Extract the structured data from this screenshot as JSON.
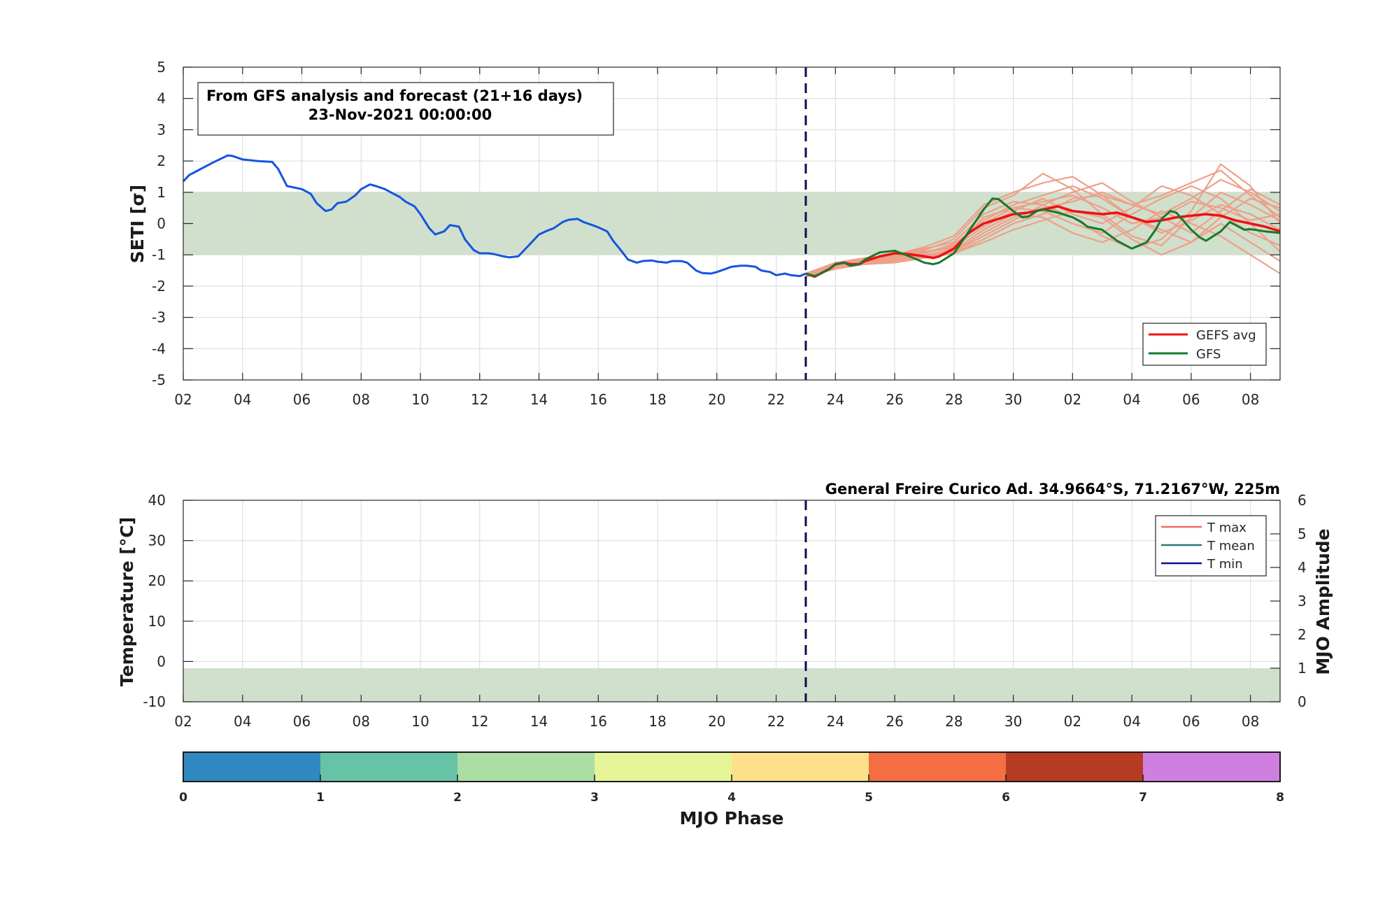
{
  "chart_data": [
    {
      "type": "line",
      "panel": "seti",
      "ylabel": "SETI [σ]",
      "ylim": [
        -5,
        5
      ],
      "yticks": [
        "-5",
        "-4",
        "-3",
        "-2",
        "-1",
        "0",
        "1",
        "2",
        "3",
        "4",
        "5"
      ],
      "x_ticks": [
        "02",
        "04",
        "06",
        "08",
        "10",
        "12",
        "14",
        "16",
        "18",
        "20",
        "22",
        "24",
        "26",
        "28",
        "30",
        "02",
        "04",
        "06",
        "08"
      ],
      "x_range_days": [
        0,
        37
      ],
      "info_line1": "From GFS analysis and forecast (21+16 days)",
      "info_line2": "23-Nov-2021 00:00:00",
      "forecast_start_day": 21,
      "normal_band": [
        -1,
        1
      ],
      "band_color": "#d0e0cc",
      "legend": [
        {
          "label": "GEFS avg",
          "color": "#ee1111"
        },
        {
          "label": "GFS",
          "color": "#167a2c"
        }
      ],
      "analysis": {
        "color": "#1455e0",
        "x": [
          0,
          0.2,
          0.5,
          1.0,
          1.5,
          1.6,
          1.7,
          2.0,
          2.5,
          3.0,
          3.2,
          3.5,
          4.0,
          4.3,
          4.5,
          4.8,
          5.0,
          5.2,
          5.5,
          5.8,
          6.0,
          6.3,
          6.5,
          6.8,
          7.0,
          7.3,
          7.5,
          7.8,
          8.0,
          8.3,
          8.5,
          8.8,
          9.0,
          9.3,
          9.5,
          9.8,
          10.0,
          10.3,
          10.5,
          10.8,
          11.0,
          11.3,
          11.5,
          11.8,
          12.0,
          12.3,
          12.5,
          12.8,
          13.0,
          13.3,
          13.5,
          13.8,
          14.0,
          14.3,
          14.5,
          14.8,
          15.0,
          15.3,
          15.5,
          15.8,
          16.0,
          16.3,
          16.5,
          16.8,
          17.0,
          17.3,
          17.5,
          17.8,
          18.0,
          18.3,
          18.5,
          18.8,
          19.0,
          19.3,
          19.5,
          19.8,
          20.0,
          20.3,
          20.5,
          20.8,
          21.0
        ],
        "y": [
          1.35,
          1.55,
          1.7,
          1.95,
          2.18,
          2.17,
          2.15,
          2.05,
          2.0,
          1.97,
          1.75,
          1.2,
          1.1,
          0.95,
          0.65,
          0.4,
          0.45,
          0.65,
          0.7,
          0.9,
          1.1,
          1.25,
          1.2,
          1.1,
          1.0,
          0.85,
          0.7,
          0.55,
          0.3,
          -0.15,
          -0.35,
          -0.25,
          -0.05,
          -0.1,
          -0.5,
          -0.85,
          -0.95,
          -0.95,
          -0.98,
          -1.05,
          -1.08,
          -1.05,
          -0.85,
          -0.55,
          -0.35,
          -0.22,
          -0.15,
          0.05,
          0.12,
          0.15,
          0.05,
          -0.05,
          -0.12,
          -0.25,
          -0.55,
          -0.9,
          -1.15,
          -1.25,
          -1.2,
          -1.18,
          -1.22,
          -1.25,
          -1.2,
          -1.2,
          -1.25,
          -1.5,
          -1.58,
          -1.6,
          -1.55,
          -1.45,
          -1.38,
          -1.35,
          -1.35,
          -1.38,
          -1.5,
          -1.55,
          -1.65,
          -1.6,
          -1.65,
          -1.68,
          -1.6
        ]
      },
      "gefs_avg": {
        "color": "#ee1111",
        "x": [
          21.0,
          21.3,
          21.5,
          21.8,
          22.0,
          22.3,
          22.5,
          22.8,
          23.0,
          23.5,
          24.0,
          24.5,
          25.0,
          25.3,
          25.5,
          26.0,
          26.5,
          27.0,
          27.5,
          28.0,
          28.5,
          29.0,
          29.5,
          30.0,
          30.5,
          31.0,
          31.5,
          32.0,
          32.5,
          33.0,
          33.5,
          34.0,
          34.5,
          35.0,
          35.5,
          36.0,
          36.5,
          37.0
        ],
        "y": [
          -1.6,
          -1.7,
          -1.6,
          -1.45,
          -1.3,
          -1.25,
          -1.3,
          -1.3,
          -1.2,
          -1.05,
          -0.95,
          -0.98,
          -1.05,
          -1.1,
          -1.05,
          -0.8,
          -0.3,
          0.0,
          0.15,
          0.3,
          0.35,
          0.45,
          0.55,
          0.4,
          0.35,
          0.3,
          0.35,
          0.2,
          0.05,
          0.1,
          0.2,
          0.25,
          0.3,
          0.25,
          0.1,
          0.0,
          -0.1,
          -0.25
        ]
      },
      "gfs": {
        "color": "#167a2c",
        "x": [
          21.0,
          21.3,
          21.5,
          21.8,
          22.0,
          22.3,
          22.5,
          22.8,
          23.0,
          23.5,
          24.0,
          24.5,
          25.0,
          25.3,
          25.5,
          26.0,
          26.5,
          27.0,
          27.3,
          27.5,
          27.8,
          28.0,
          28.3,
          28.5,
          28.8,
          29.0,
          29.5,
          30.0,
          30.3,
          30.5,
          31.0,
          31.5,
          32.0,
          32.5,
          32.8,
          33.0,
          33.3,
          33.5,
          34.0,
          34.3,
          34.5,
          35.0,
          35.3,
          35.5,
          35.8,
          36.0,
          36.5,
          37.0
        ],
        "y": [
          -1.6,
          -1.68,
          -1.6,
          -1.45,
          -1.3,
          -1.25,
          -1.35,
          -1.3,
          -1.15,
          -0.92,
          -0.87,
          -1.05,
          -1.25,
          -1.3,
          -1.25,
          -0.95,
          -0.25,
          0.45,
          0.8,
          0.78,
          0.55,
          0.4,
          0.2,
          0.22,
          0.4,
          0.45,
          0.35,
          0.2,
          0.05,
          -0.1,
          -0.2,
          -0.55,
          -0.8,
          -0.6,
          -0.2,
          0.15,
          0.4,
          0.35,
          -0.2,
          -0.45,
          -0.55,
          -0.25,
          0.05,
          -0.05,
          -0.2,
          -0.18,
          -0.25,
          -0.3
        ]
      },
      "ensemble": {
        "color": "#eda08a",
        "members": [
          {
            "x": [
              21,
              22,
              23,
              24,
              25,
              26,
              27,
              28,
              29,
              30,
              31,
              32,
              33,
              34,
              35,
              36,
              37
            ],
            "y": [
              -1.65,
              -1.35,
              -1.15,
              -1.1,
              -0.95,
              -0.7,
              0.1,
              0.6,
              0.9,
              1.2,
              0.8,
              0.2,
              -0.3,
              0.1,
              0.6,
              0.3,
              -0.2
            ]
          },
          {
            "x": [
              21,
              22,
              23,
              24,
              25,
              26,
              27,
              28,
              29,
              30,
              31,
              32,
              33,
              34,
              35,
              36,
              37
            ],
            "y": [
              -1.7,
              -1.3,
              -1.25,
              -1.05,
              -0.85,
              -0.5,
              0.5,
              0.9,
              1.6,
              1.1,
              0.3,
              -0.4,
              -0.7,
              0.2,
              1.0,
              0.6,
              0.1
            ]
          },
          {
            "x": [
              21,
              22,
              23,
              24,
              25,
              26,
              27,
              28,
              29,
              30,
              31,
              32,
              33,
              34,
              35,
              36,
              37
            ],
            "y": [
              -1.6,
              -1.4,
              -1.2,
              -1.15,
              -1.1,
              -0.9,
              -0.3,
              0.2,
              0.5,
              0.7,
              1.0,
              0.6,
              0.3,
              0.8,
              1.4,
              1.0,
              0.4
            ]
          },
          {
            "x": [
              21,
              22,
              23,
              24,
              25,
              26,
              27,
              28,
              29,
              30,
              31,
              32,
              33,
              34,
              35,
              36,
              37
            ],
            "y": [
              -1.65,
              -1.25,
              -1.2,
              -1.0,
              -0.8,
              -0.6,
              0.3,
              0.7,
              0.6,
              0.2,
              -0.4,
              -0.8,
              -0.5,
              0.4,
              1.9,
              1.2,
              0.0
            ]
          },
          {
            "x": [
              21,
              22,
              23,
              24,
              25,
              26,
              27,
              28,
              29,
              30,
              31,
              32,
              33,
              34,
              35,
              36,
              37
            ],
            "y": [
              -1.7,
              -1.45,
              -1.3,
              -1.2,
              -1.05,
              -0.95,
              -0.5,
              0.0,
              0.3,
              0.8,
              0.9,
              0.2,
              -0.2,
              -0.6,
              0.2,
              0.8,
              0.5
            ]
          },
          {
            "x": [
              21,
              22,
              23,
              24,
              25,
              26,
              27,
              28,
              29,
              30,
              31,
              32,
              33,
              34,
              35,
              36,
              37
            ],
            "y": [
              -1.6,
              -1.3,
              -1.15,
              -1.1,
              -0.9,
              -0.75,
              -0.1,
              0.4,
              0.8,
              0.3,
              0.0,
              0.5,
              1.2,
              0.9,
              0.3,
              -0.3,
              -0.7
            ]
          },
          {
            "x": [
              21,
              22,
              23,
              24,
              25,
              26,
              27,
              28,
              29,
              30,
              31,
              32,
              33,
              34,
              35,
              36,
              37
            ],
            "y": [
              -1.65,
              -1.35,
              -1.3,
              -1.25,
              -1.1,
              -0.95,
              -0.6,
              -0.2,
              0.1,
              0.4,
              0.2,
              -0.5,
              -1.0,
              -0.6,
              0.0,
              -0.6,
              -1.2
            ]
          },
          {
            "x": [
              21,
              22,
              23,
              24,
              25,
              26,
              27,
              28,
              29,
              30,
              31,
              32,
              33,
              34,
              35,
              36,
              37
            ],
            "y": [
              -1.6,
              -1.25,
              -1.1,
              -1.0,
              -0.75,
              -0.4,
              0.6,
              1.0,
              1.3,
              1.5,
              0.9,
              0.6,
              0.9,
              1.3,
              1.7,
              0.9,
              0.2
            ]
          },
          {
            "x": [
              21,
              22,
              23,
              24,
              25,
              26,
              27,
              28,
              29,
              30,
              31,
              32,
              33,
              34,
              35,
              36,
              37
            ],
            "y": [
              -1.7,
              -1.4,
              -1.25,
              -1.15,
              -1.0,
              -0.85,
              -0.2,
              0.3,
              0.2,
              -0.3,
              -0.6,
              -0.2,
              0.4,
              0.0,
              -0.4,
              -1.0,
              -1.6
            ]
          },
          {
            "x": [
              21,
              22,
              23,
              24,
              25,
              26,
              27,
              28,
              29,
              30,
              31,
              32,
              33,
              34,
              35,
              36,
              37
            ],
            "y": [
              -1.65,
              -1.3,
              -1.2,
              -1.1,
              -0.9,
              -0.8,
              0.2,
              0.5,
              0.7,
              0.9,
              0.5,
              0.0,
              0.2,
              0.7,
              0.5,
              0.1,
              0.3
            ]
          },
          {
            "x": [
              21,
              22,
              23,
              24,
              25,
              26,
              27,
              28,
              29,
              30,
              31,
              32,
              33,
              34,
              35,
              36,
              37
            ],
            "y": [
              -1.6,
              -1.35,
              -1.2,
              -1.2,
              -1.05,
              -0.9,
              -0.4,
              0.1,
              0.6,
              1.0,
              1.3,
              0.7,
              0.2,
              -0.3,
              0.4,
              1.1,
              0.6
            ]
          },
          {
            "x": [
              21,
              22,
              23,
              24,
              25,
              26,
              27,
              28,
              29,
              30,
              31,
              32,
              33,
              34,
              35,
              36,
              37
            ],
            "y": [
              -1.7,
              -1.3,
              -1.15,
              -1.05,
              -0.95,
              -0.65,
              0.0,
              0.5,
              0.4,
              0.0,
              -0.3,
              0.3,
              0.8,
              1.2,
              0.8,
              0.0,
              -0.9
            ]
          }
        ]
      }
    },
    {
      "type": "line",
      "panel": "temperature",
      "title": "General Freire Curico Ad. 34.9664°S, 71.2167°W, 225m",
      "ylabel": "Temperature [°C]",
      "ylabel_right": "MJO Amplitude",
      "ylim": [
        -10,
        40
      ],
      "yticks": [
        "-10",
        "0",
        "10",
        "20",
        "30",
        "40"
      ],
      "ylim_right": [
        0,
        6
      ],
      "yticks_right": [
        "0",
        "1",
        "2",
        "3",
        "4",
        "5",
        "6"
      ],
      "x_ticks": [
        "02",
        "04",
        "06",
        "08",
        "10",
        "12",
        "14",
        "16",
        "18",
        "20",
        "22",
        "24",
        "26",
        "28",
        "30",
        "02",
        "04",
        "06",
        "08"
      ],
      "x_range_days": [
        0,
        37
      ],
      "forecast_start_day": 21,
      "band_right": [
        0,
        1
      ],
      "band_color": "#d0e0cc",
      "legend": [
        {
          "label": "T max",
          "color": "#f06a6a"
        },
        {
          "label": "T mean",
          "color": "#2a7a7a"
        },
        {
          "label": "T min",
          "color": "#10108a"
        }
      ]
    },
    {
      "type": "colorbar",
      "panel": "mjo-phase",
      "xlabel": "MJO Phase",
      "ticks": [
        "0",
        "1",
        "2",
        "3",
        "4",
        "5",
        "6",
        "7",
        "8"
      ],
      "colors": [
        "#2f88c0",
        "#66c3a5",
        "#abdda4",
        "#e6f598",
        "#fee08b",
        "#f46d43",
        "#b73a22",
        "#cf7fe0"
      ]
    }
  ]
}
